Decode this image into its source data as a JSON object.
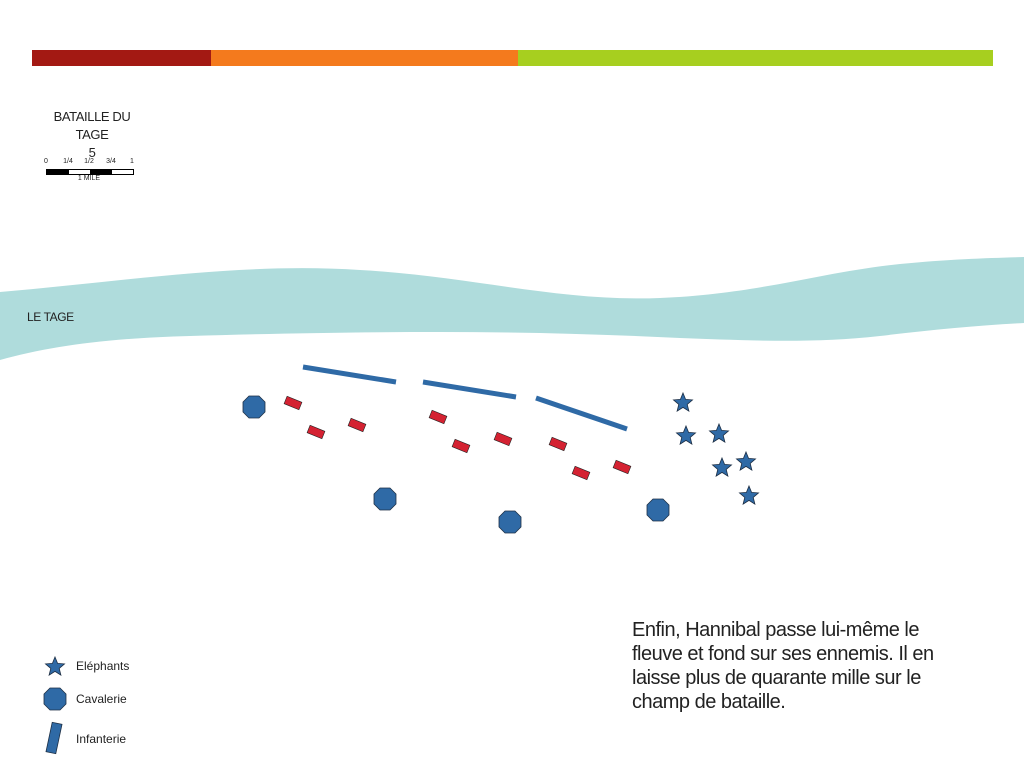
{
  "colors": {
    "bar_red": "#a31913",
    "bar_orange": "#f47a1d",
    "bar_green": "#a7cf1f",
    "river": "#afdcdc",
    "army_blue": "#2f6aa6",
    "army_red": "#d42232"
  },
  "title": {
    "line1": "BATAILLE DU TAGE",
    "line2": "5"
  },
  "scale": {
    "ticks": [
      "0",
      "1/4",
      "1/2",
      "3/4",
      "1"
    ],
    "unit": "1 MILE"
  },
  "river_label": "LE TAGE",
  "legend": [
    {
      "icon": "star-icon",
      "label": "Eléphants"
    },
    {
      "icon": "hexagon-icon",
      "label": "Cavalerie"
    },
    {
      "icon": "bar-icon",
      "label": "Infanterie"
    }
  ],
  "caption": "Enfin, Hannibal passe lui-même le fleuve et fond sur ses ennemis. Il en laisse plus de quarante mille sur le champ de bataille."
}
